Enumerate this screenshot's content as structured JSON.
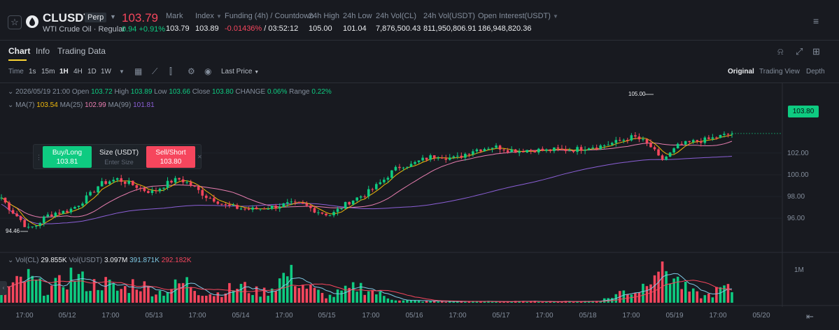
{
  "header": {
    "symbol": "CLUSDT",
    "contract_type": "Perp",
    "instrument_name": "WTI Crude Oil · Regular",
    "last_price": "103.79",
    "change": "0.94 +0.91%",
    "stats": [
      {
        "label": "Mark",
        "value": "103.79"
      },
      {
        "label": "Index",
        "value": "103.89"
      },
      {
        "label": "Funding (4h) / Countdown",
        "value_neg": "-0.01436%",
        "value": " / 03:52:12"
      },
      {
        "label": "24h High",
        "value": "105.00"
      },
      {
        "label": "24h Low",
        "value": "101.04"
      },
      {
        "label": "24h Vol(CL)",
        "value": "7,876,500.43"
      },
      {
        "label": "24h Vol(USDT)",
        "value": "811,950,806.91"
      },
      {
        "label": "Open Interest(USDT)",
        "value": "186,948,820.36"
      }
    ],
    "icons": {
      "favorite": "star-icon",
      "coin": "oil-drop-icon",
      "more": "more-icon"
    },
    "colors": {
      "up": "#0ecb81",
      "down": "#f6465d",
      "accent": "#fcd535"
    }
  },
  "tabs": [
    {
      "label": "Chart",
      "active": true
    },
    {
      "label": "Info"
    },
    {
      "label": "Trading Data"
    }
  ],
  "toolbar": {
    "time_label": "Time",
    "intervals": [
      "1s",
      "15m",
      "1H",
      "4H",
      "1D",
      "1W"
    ],
    "active_interval": "1H",
    "price_type": "Last Price",
    "views": [
      "Original",
      "Trading View",
      "Depth"
    ],
    "active_view": "Original"
  },
  "legend": {
    "date": "2026/05/19 21:00",
    "open_label": "Open",
    "open": "103.72",
    "high_label": "High",
    "high": "103.89",
    "low_label": "Low",
    "low": "103.66",
    "close_label": "Close",
    "close": "103.80",
    "change_label": "CHANGE",
    "change": "0.06%",
    "range_label": "Range",
    "range": "0.22%",
    "ma7_label": "MA(7)",
    "ma7": "103.54",
    "ma25_label": "MA(25)",
    "ma25": "102.99",
    "ma99_label": "MA(99)",
    "ma99": "101.81",
    "vol_label": "Vol(CL)",
    "vol": "29.855K",
    "volusdt_label": "Vol(USDT)",
    "volusdt": "3.097M",
    "vol_ma1": "391.871K",
    "vol_ma2": "292.182K"
  },
  "quick_trade": {
    "buy_label": "Buy/Long",
    "buy_price": "103.81",
    "size_label": "Size (USDT)",
    "size_placeholder": "Enter Size",
    "sell_label": "Sell/Short",
    "sell_price": "103.80"
  },
  "chart_data": {
    "type": "candlestick",
    "price_axis_ticks": [
      "102.00",
      "100.00",
      "98.00",
      "96.00"
    ],
    "ylim": [
      93.5,
      106.5
    ],
    "volume_axis_ticks": [
      "1M"
    ],
    "time_axis_ticks": [
      "17:00",
      "05/12",
      "17:00",
      "05/13",
      "17:00",
      "05/14",
      "17:00",
      "05/15",
      "17:00",
      "05/16",
      "17:00",
      "05/17",
      "17:00",
      "05/18",
      "17:00",
      "05/19",
      "17:00",
      "05/20"
    ],
    "current_price": "103.80",
    "annotations": {
      "high": "105.00",
      "low": "94.46"
    },
    "close_path": [
      97.9,
      96.8,
      96.0,
      95.0,
      95.4,
      96.2,
      96.5,
      96.6,
      96.9,
      97.5,
      98.2,
      99.1,
      99.4,
      99.6,
      99.3,
      99.0,
      98.6,
      98.4,
      98.9,
      99.4,
      99.6,
      99.2,
      98.6,
      98.0,
      97.7,
      97.2,
      97.0,
      96.9,
      96.8,
      96.9,
      97.0,
      97.1,
      97.3,
      97.3,
      97.2,
      96.8,
      96.5,
      96.3,
      96.9,
      97.5,
      97.9,
      98.3,
      98.9,
      99.6,
      100.4,
      100.9,
      100.9,
      101.3,
      101.6,
      101.8,
      101.6,
      101.5,
      101.9,
      102.3,
      102.4,
      102.6,
      102.5,
      102.3,
      102.2,
      102.3,
      102.3,
      102.2,
      102.3,
      102.3,
      102.3,
      102.4,
      102.6,
      102.6,
      102.8,
      103.0,
      103.3,
      103.5,
      103.1,
      102.5,
      101.3,
      101.9,
      102.7,
      102.9,
      103.1,
      103.2,
      103.4,
      103.6,
      103.8
    ],
    "volume_level": [
      0.4,
      0.35,
      0.5,
      0.6,
      0.45,
      0.3,
      0.4,
      0.5,
      0.7,
      0.55,
      0.4,
      0.5,
      0.45,
      0.3,
      0.35,
      0.5,
      0.4,
      0.3,
      0.25,
      0.35,
      0.45,
      0.5,
      0.3,
      0.25,
      0.2,
      0.3,
      0.35,
      0.4,
      0.3,
      0.25,
      0.3,
      0.5,
      0.7,
      0.6,
      0.4,
      0.3,
      0.2,
      0.15,
      0.25,
      0.3,
      0.4,
      0.35,
      0.25,
      0.15,
      0.1,
      0.05,
      0.05,
      0.04,
      0.04,
      0.03,
      0.03,
      0.03,
      0.03,
      0.03,
      0.03,
      0.03,
      0.03,
      0.03,
      0.03,
      0.03,
      0.03,
      0.03,
      0.03,
      0.03,
      0.03,
      0.03,
      0.04,
      0.05,
      0.1,
      0.2,
      0.3,
      0.25,
      0.4,
      0.9,
      1.0,
      0.7,
      0.5,
      0.3,
      0.2,
      0.15,
      0.25,
      0.35,
      0.3
    ]
  }
}
